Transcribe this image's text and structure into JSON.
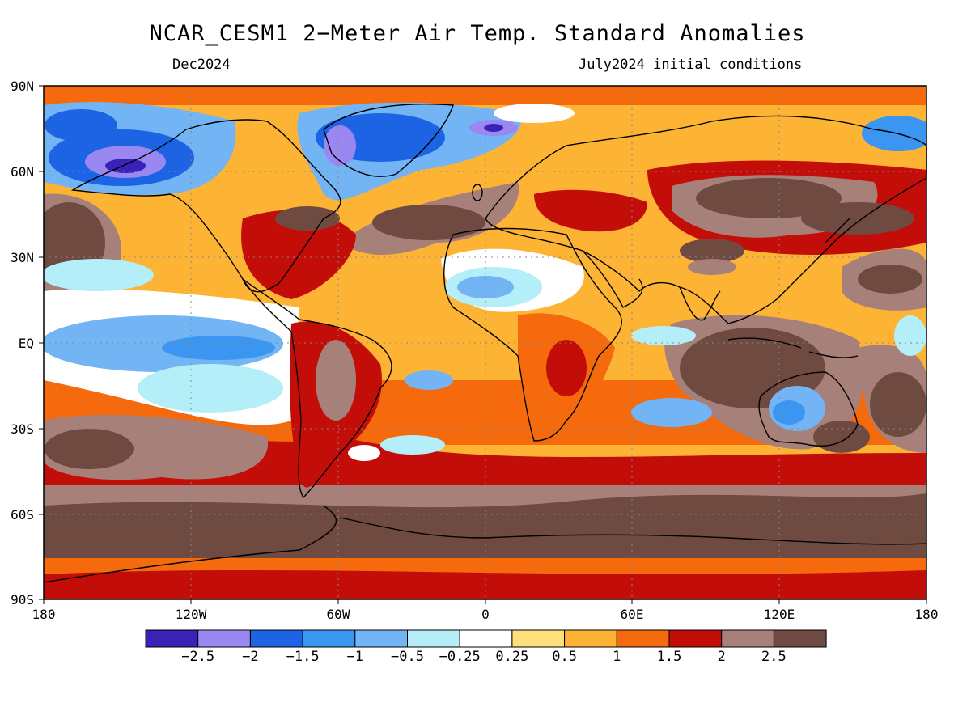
{
  "title": "NCAR_CESM1 2−Meter Air Temp. Standard Anomalies",
  "subtitle_left": "Dec2024",
  "subtitle_right": "July2024 initial conditions",
  "lat_labels": [
    "90N",
    "60N",
    "30N",
    "EQ",
    "30S",
    "60S",
    "90S"
  ],
  "lon_labels": [
    "180",
    "120W",
    "60W",
    "0",
    "60E",
    "120E",
    "180"
  ],
  "colorbar": {
    "labels": [
      "−2.5",
      "−2",
      "−1.5",
      "−1",
      "−0.5",
      "−0.25",
      "0.25",
      "0.5",
      "1",
      "1.5",
      "2",
      "2.5"
    ],
    "colors": [
      "#3a22b8",
      "#9b87f2",
      "#1c64e4",
      "#3a96f0",
      "#72b4f4",
      "#b4eef8",
      "#ffffff",
      "#fde07a",
      "#fdb435",
      "#f56a0c",
      "#c30d08",
      "#a8807a",
      "#6e4a40"
    ]
  },
  "map_colors": {
    "ocean_base": "#fdb435",
    "land_outline": "#000000",
    "grid": "#888888"
  }
}
